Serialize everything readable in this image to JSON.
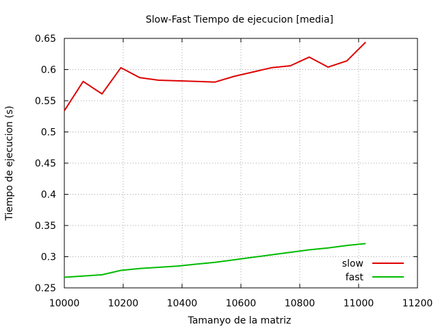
{
  "chart_data": {
    "type": "line",
    "title": "Slow-Fast Tiempo de ejecucion [media]",
    "xlabel": "Tamanyo de la matriz",
    "ylabel": "Tiempo de ejecucion (s)",
    "xlim": [
      10000,
      11200
    ],
    "ylim": [
      0.25,
      0.65
    ],
    "xticks": [
      10000,
      10200,
      10400,
      10600,
      10800,
      11000,
      11200
    ],
    "yticks": [
      0.25,
      0.3,
      0.35,
      0.4,
      0.45,
      0.5,
      0.55,
      0.6,
      0.65
    ],
    "xtick_labels": [
      "10000",
      "10200",
      "10400",
      "10600",
      "10800",
      "11000",
      "11200"
    ],
    "ytick_labels": [
      "0.25",
      "0.3",
      "0.35",
      "0.4",
      "0.45",
      "0.5",
      "0.55",
      "0.6",
      "0.65"
    ],
    "grid": true,
    "legend_position": "bottom-right",
    "series": [
      {
        "name": "slow",
        "color": "#dd0000",
        "x": [
          10000,
          10064,
          10128,
          10192,
          10256,
          10320,
          10384,
          10448,
          10512,
          10576,
          10640,
          10704,
          10768,
          10832,
          10896,
          10960,
          11024
        ],
        "y": [
          0.534,
          0.581,
          0.561,
          0.603,
          0.587,
          0.583,
          0.582,
          0.581,
          0.58,
          0.589,
          0.596,
          0.603,
          0.606,
          0.62,
          0.604,
          0.614,
          0.644
        ]
      },
      {
        "name": "fast",
        "color": "#00bb00",
        "x": [
          10000,
          10064,
          10128,
          10192,
          10256,
          10320,
          10384,
          10448,
          10512,
          10576,
          10640,
          10704,
          10768,
          10832,
          10896,
          10960,
          11024
        ],
        "y": [
          0.267,
          0.269,
          0.271,
          0.278,
          0.281,
          0.283,
          0.285,
          0.288,
          0.291,
          0.295,
          0.299,
          0.303,
          0.307,
          0.311,
          0.314,
          0.318,
          0.321
        ]
      }
    ]
  }
}
